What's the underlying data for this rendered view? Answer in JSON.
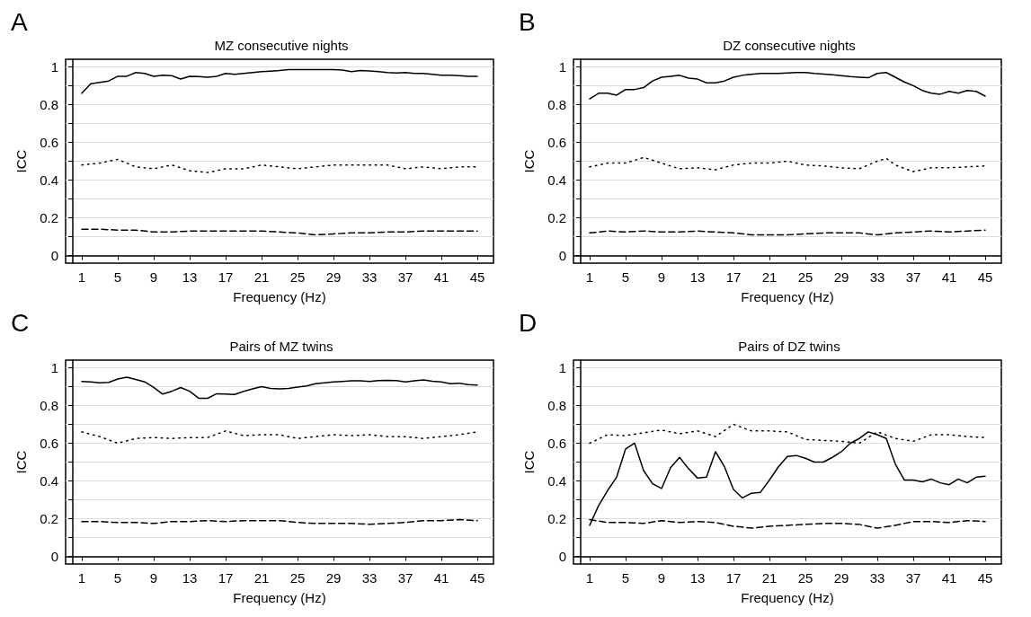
{
  "chart_data": [
    {
      "type": "line",
      "title": "MZ consecutive nights",
      "xlabel": "Frequency (Hz)",
      "ylabel": "ICC",
      "annotations": [
        "A"
      ],
      "marker": "none",
      "grid": "y",
      "xlim": [
        -0.8,
        46.8
      ],
      "xticks": [
        1,
        5,
        9,
        13,
        17,
        21,
        25,
        29,
        33,
        37,
        41,
        45
      ],
      "ylim": [
        -0.04,
        1.04
      ],
      "yticks": [
        0,
        {
          "value": 0.1,
          "label": null
        },
        0.2,
        {
          "value": 0.3,
          "label": null
        },
        0.4,
        {
          "value": 0.5,
          "label": null
        },
        0.6,
        {
          "value": 0.7,
          "label": null
        },
        0.8,
        {
          "value": 0.9,
          "label": null
        },
        1
      ],
      "x": [
        1,
        2,
        3,
        4,
        5,
        6,
        7,
        8,
        9,
        10,
        11,
        12,
        13,
        14,
        15,
        16,
        17,
        18,
        19,
        20,
        21,
        22,
        23,
        24,
        25,
        26,
        27,
        28,
        29,
        30,
        31,
        32,
        33,
        34,
        35,
        36,
        37,
        38,
        39,
        40,
        41,
        42,
        43,
        44,
        45
      ],
      "series": [
        {
          "color": "#000000",
          "line_style": "solid",
          "values": [
            0.86,
            0.91,
            0.918,
            0.925,
            0.95,
            0.95,
            0.97,
            0.965,
            0.95,
            0.955,
            0.953,
            0.935,
            0.95,
            0.948,
            0.945,
            0.95,
            0.965,
            0.96,
            0.965,
            0.97,
            0.975,
            0.977,
            0.98,
            0.985,
            0.985,
            0.985,
            0.985,
            0.985,
            0.985,
            0.983,
            0.975,
            0.98,
            0.978,
            0.975,
            0.97,
            0.968,
            0.97,
            0.965,
            0.965,
            0.96,
            0.955,
            0.955,
            0.953,
            0.95,
            0.95
          ]
        },
        {
          "color": "#000000",
          "line_style": "dotted",
          "x": [
            1,
            3,
            5,
            7,
            9,
            11,
            13,
            15,
            17,
            19,
            21,
            23,
            25,
            27,
            29,
            31,
            33,
            35,
            37,
            39,
            41,
            43,
            45
          ],
          "values": [
            0.48,
            0.49,
            0.51,
            0.47,
            0.46,
            0.48,
            0.45,
            0.44,
            0.46,
            0.46,
            0.48,
            0.47,
            0.46,
            0.47,
            0.48,
            0.48,
            0.48,
            0.48,
            0.46,
            0.47,
            0.46,
            0.47,
            0.47
          ]
        },
        {
          "color": "#000000",
          "line_style": "dashed",
          "x": [
            1,
            3,
            5,
            7,
            9,
            11,
            13,
            15,
            17,
            19,
            21,
            23,
            25,
            27,
            29,
            31,
            33,
            35,
            37,
            39,
            41,
            43,
            45
          ],
          "values": [
            0.14,
            0.14,
            0.135,
            0.135,
            0.125,
            0.125,
            0.13,
            0.13,
            0.13,
            0.13,
            0.13,
            0.125,
            0.12,
            0.11,
            0.115,
            0.12,
            0.12,
            0.125,
            0.125,
            0.13,
            0.13,
            0.13,
            0.13
          ]
        }
      ]
    },
    {
      "type": "line",
      "title": "DZ consecutive nights",
      "xlabel": "Frequency (Hz)",
      "ylabel": "ICC",
      "annotations": [
        "B"
      ],
      "marker": "none",
      "grid": "y",
      "xlim": [
        -0.8,
        46.8
      ],
      "xticks": [
        1,
        5,
        9,
        13,
        17,
        21,
        25,
        29,
        33,
        37,
        41,
        45
      ],
      "ylim": [
        -0.04,
        1.04
      ],
      "yticks": [
        0,
        {
          "value": 0.1,
          "label": null
        },
        0.2,
        {
          "value": 0.3,
          "label": null
        },
        0.4,
        {
          "value": 0.5,
          "label": null
        },
        0.6,
        {
          "value": 0.7,
          "label": null
        },
        0.8,
        {
          "value": 0.9,
          "label": null
        },
        1
      ],
      "x": [
        1,
        2,
        3,
        4,
        5,
        6,
        7,
        8,
        9,
        10,
        11,
        12,
        13,
        14,
        15,
        16,
        17,
        18,
        19,
        20,
        21,
        22,
        23,
        24,
        25,
        26,
        27,
        28,
        29,
        30,
        31,
        32,
        33,
        34,
        35,
        36,
        37,
        38,
        39,
        40,
        41,
        42,
        43,
        44,
        45
      ],
      "series": [
        {
          "color": "#000000",
          "line_style": "solid",
          "values": [
            0.83,
            0.86,
            0.86,
            0.85,
            0.88,
            0.88,
            0.89,
            0.925,
            0.945,
            0.95,
            0.955,
            0.94,
            0.935,
            0.915,
            0.915,
            0.925,
            0.945,
            0.955,
            0.96,
            0.965,
            0.965,
            0.965,
            0.967,
            0.97,
            0.97,
            0.965,
            0.962,
            0.958,
            0.953,
            0.948,
            0.945,
            0.942,
            0.965,
            0.97,
            0.945,
            0.92,
            0.9,
            0.875,
            0.86,
            0.855,
            0.87,
            0.86,
            0.875,
            0.87,
            0.845
          ]
        },
        {
          "color": "#000000",
          "line_style": "dotted",
          "x": [
            1,
            3,
            5,
            7,
            9,
            11,
            13,
            15,
            17,
            19,
            21,
            23,
            25,
            27,
            29,
            31,
            33,
            34,
            35,
            37,
            39,
            41,
            43,
            45
          ],
          "values": [
            0.47,
            0.49,
            0.49,
            0.52,
            0.49,
            0.46,
            0.465,
            0.455,
            0.48,
            0.49,
            0.49,
            0.5,
            0.48,
            0.475,
            0.465,
            0.46,
            0.5,
            0.515,
            0.48,
            0.445,
            0.465,
            0.465,
            0.47,
            0.475
          ]
        },
        {
          "color": "#000000",
          "line_style": "dashed",
          "x": [
            1,
            3,
            5,
            7,
            9,
            11,
            13,
            15,
            17,
            19,
            21,
            23,
            25,
            27,
            29,
            31,
            33,
            35,
            37,
            39,
            41,
            43,
            45
          ],
          "values": [
            0.12,
            0.13,
            0.125,
            0.13,
            0.125,
            0.125,
            0.13,
            0.125,
            0.12,
            0.11,
            0.11,
            0.11,
            0.115,
            0.12,
            0.12,
            0.12,
            0.11,
            0.12,
            0.125,
            0.13,
            0.125,
            0.13,
            0.135
          ]
        }
      ]
    },
    {
      "type": "line",
      "title": "Pairs of MZ twins",
      "xlabel": "Frequency (Hz)",
      "ylabel": "ICC",
      "annotations": [
        "C"
      ],
      "marker": "none",
      "grid": "y",
      "xlim": [
        -0.8,
        46.8
      ],
      "xticks": [
        1,
        5,
        9,
        13,
        17,
        21,
        25,
        29,
        33,
        37,
        41,
        45
      ],
      "ylim": [
        -0.04,
        1.04
      ],
      "yticks": [
        0,
        {
          "value": 0.1,
          "label": null
        },
        0.2,
        {
          "value": 0.3,
          "label": null
        },
        0.4,
        {
          "value": 0.5,
          "label": null
        },
        0.6,
        {
          "value": 0.7,
          "label": null
        },
        0.8,
        {
          "value": 0.9,
          "label": null
        },
        1
      ],
      "x": [
        1,
        2,
        3,
        4,
        5,
        6,
        7,
        8,
        9,
        10,
        11,
        12,
        13,
        14,
        15,
        16,
        17,
        18,
        19,
        20,
        21,
        22,
        23,
        24,
        25,
        26,
        27,
        28,
        29,
        30,
        31,
        32,
        33,
        34,
        35,
        36,
        37,
        38,
        39,
        40,
        41,
        42,
        43,
        44,
        45
      ],
      "series": [
        {
          "color": "#000000",
          "line_style": "solid",
          "values": [
            0.927,
            0.925,
            0.92,
            0.922,
            0.94,
            0.95,
            0.938,
            0.925,
            0.895,
            0.86,
            0.875,
            0.895,
            0.875,
            0.838,
            0.838,
            0.862,
            0.86,
            0.858,
            0.875,
            0.888,
            0.9,
            0.89,
            0.888,
            0.89,
            0.897,
            0.903,
            0.915,
            0.92,
            0.925,
            0.927,
            0.93,
            0.93,
            0.927,
            0.932,
            0.933,
            0.932,
            0.925,
            0.93,
            0.935,
            0.928,
            0.925,
            0.915,
            0.918,
            0.91,
            0.908
          ]
        },
        {
          "color": "#000000",
          "line_style": "dotted",
          "x": [
            1,
            3,
            5,
            7,
            9,
            11,
            13,
            15,
            17,
            19,
            21,
            23,
            25,
            27,
            29,
            31,
            33,
            35,
            37,
            39,
            41,
            43,
            45
          ],
          "values": [
            0.66,
            0.635,
            0.6,
            0.625,
            0.63,
            0.625,
            0.63,
            0.63,
            0.665,
            0.64,
            0.645,
            0.645,
            0.625,
            0.635,
            0.645,
            0.64,
            0.645,
            0.635,
            0.635,
            0.625,
            0.635,
            0.645,
            0.66
          ]
        },
        {
          "color": "#000000",
          "line_style": "dashed",
          "x": [
            1,
            3,
            5,
            7,
            9,
            11,
            13,
            15,
            17,
            19,
            21,
            23,
            25,
            27,
            29,
            31,
            33,
            35,
            37,
            39,
            41,
            43,
            45
          ],
          "values": [
            0.185,
            0.185,
            0.18,
            0.18,
            0.175,
            0.185,
            0.185,
            0.19,
            0.185,
            0.19,
            0.19,
            0.19,
            0.18,
            0.175,
            0.175,
            0.175,
            0.17,
            0.175,
            0.18,
            0.19,
            0.19,
            0.195,
            0.19
          ]
        }
      ]
    },
    {
      "type": "line",
      "title": "Pairs of DZ twins",
      "xlabel": "Frequency (Hz)",
      "ylabel": "ICC",
      "annotations": [
        "D"
      ],
      "marker": "none",
      "grid": "y",
      "xlim": [
        -0.8,
        46.8
      ],
      "xticks": [
        1,
        5,
        9,
        13,
        17,
        21,
        25,
        29,
        33,
        37,
        41,
        45
      ],
      "ylim": [
        -0.04,
        1.04
      ],
      "yticks": [
        0,
        {
          "value": 0.1,
          "label": null
        },
        0.2,
        {
          "value": 0.3,
          "label": null
        },
        0.4,
        {
          "value": 0.5,
          "label": null
        },
        0.6,
        {
          "value": 0.7,
          "label": null
        },
        0.8,
        {
          "value": 0.9,
          "label": null
        },
        1
      ],
      "x": [
        1,
        2,
        3,
        4,
        5,
        6,
        7,
        8,
        9,
        10,
        11,
        12,
        13,
        14,
        15,
        16,
        17,
        18,
        19,
        20,
        21,
        22,
        23,
        24,
        25,
        26,
        27,
        28,
        29,
        30,
        31,
        32,
        33,
        34,
        35,
        36,
        37,
        38,
        39,
        40,
        41,
        42,
        43,
        44,
        45
      ],
      "series": [
        {
          "color": "#000000",
          "line_style": "solid",
          "values": [
            0.165,
            0.27,
            0.35,
            0.42,
            0.57,
            0.6,
            0.455,
            0.385,
            0.36,
            0.47,
            0.525,
            0.465,
            0.415,
            0.42,
            0.555,
            0.475,
            0.355,
            0.31,
            0.335,
            0.34,
            0.405,
            0.475,
            0.53,
            0.535,
            0.52,
            0.5,
            0.5,
            0.525,
            0.555,
            0.6,
            0.625,
            0.66,
            0.645,
            0.625,
            0.49,
            0.405,
            0.405,
            0.395,
            0.41,
            0.39,
            0.38,
            0.41,
            0.39,
            0.42,
            0.425
          ]
        },
        {
          "color": "#000000",
          "line_style": "dotted",
          "x": [
            1,
            3,
            5,
            7,
            9,
            11,
            13,
            15,
            17,
            19,
            21,
            23,
            25,
            27,
            29,
            31,
            33,
            35,
            37,
            39,
            41,
            43,
            45
          ],
          "values": [
            0.6,
            0.645,
            0.64,
            0.655,
            0.67,
            0.65,
            0.665,
            0.635,
            0.7,
            0.665,
            0.665,
            0.66,
            0.62,
            0.615,
            0.61,
            0.6,
            0.66,
            0.625,
            0.61,
            0.645,
            0.645,
            0.635,
            0.63
          ]
        },
        {
          "color": "#000000",
          "line_style": "dashed",
          "x": [
            1,
            3,
            5,
            7,
            9,
            11,
            13,
            15,
            17,
            19,
            21,
            23,
            25,
            27,
            29,
            31,
            33,
            35,
            37,
            39,
            41,
            43,
            45
          ],
          "values": [
            0.195,
            0.18,
            0.18,
            0.175,
            0.19,
            0.18,
            0.185,
            0.18,
            0.16,
            0.15,
            0.16,
            0.165,
            0.17,
            0.175,
            0.175,
            0.17,
            0.15,
            0.165,
            0.185,
            0.185,
            0.18,
            0.19,
            0.185
          ]
        }
      ]
    }
  ]
}
